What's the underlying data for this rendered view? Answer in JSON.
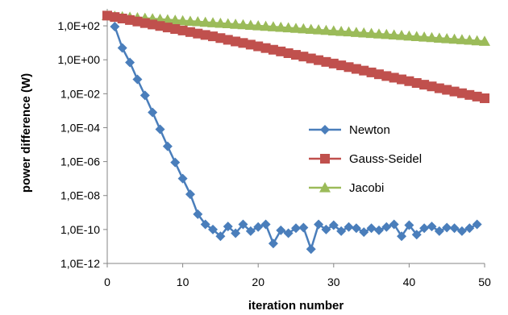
{
  "chart_data": {
    "type": "line",
    "title": "",
    "xlabel": "iteration number",
    "ylabel": "power difference (W)",
    "yscale": "log",
    "xlim": [
      0,
      50
    ],
    "ylim": [
      1e-12,
      1000
    ],
    "x_ticks": [
      0,
      10,
      20,
      30,
      40,
      50
    ],
    "x_tick_labels": [
      "0",
      "10",
      "20",
      "30",
      "40",
      "50"
    ],
    "y_ticks": [
      1e-12,
      1e-10,
      1e-08,
      1e-06,
      0.0001,
      0.01,
      1,
      100
    ],
    "y_tick_labels": [
      "1,0E-12",
      "1,0E-10",
      "1,0E-08",
      "1,0E-06",
      "1,0E-04",
      "1,0E-02",
      "1,0E+00",
      "1,0E+02"
    ],
    "grid": false,
    "legend_position": "right",
    "series": [
      {
        "name": "Newton",
        "color": "#4a7ebb",
        "marker": "diamond",
        "x": [
          1,
          2,
          3,
          4,
          5,
          6,
          7,
          8,
          9,
          10,
          11,
          12,
          13,
          14,
          15,
          16,
          17,
          18,
          19,
          20,
          21,
          22,
          23,
          24,
          25,
          26,
          27,
          28,
          29,
          30,
          31,
          32,
          33,
          34,
          35,
          36,
          37,
          38,
          39,
          40,
          41,
          42,
          43,
          44,
          45,
          46,
          47,
          48,
          49
        ],
        "y": [
          90,
          5,
          0.7,
          0.07,
          0.008,
          0.0008,
          8e-05,
          8e-06,
          9e-07,
          1e-07,
          1.2e-08,
          8e-10,
          2e-10,
          1e-10,
          4e-11,
          1.5e-10,
          6e-11,
          2e-10,
          8e-11,
          1.4e-10,
          2e-10,
          1.5e-11,
          9e-11,
          6e-11,
          1.2e-10,
          1.3e-10,
          7e-12,
          2e-10,
          1e-10,
          1.8e-10,
          8e-11,
          1.4e-10,
          1.2e-10,
          7e-11,
          1.2e-10,
          9e-11,
          1.4e-10,
          2e-10,
          4e-11,
          1.8e-10,
          5e-11,
          1.2e-10,
          1.5e-10,
          8e-11,
          1.3e-10,
          1.2e-10,
          8e-11,
          1.2e-10,
          2e-10
        ]
      },
      {
        "name": "Gauss-Seidel",
        "color": "#c0504d",
        "marker": "square",
        "x": [
          0,
          1,
          2,
          3,
          4,
          5,
          6,
          7,
          8,
          9,
          10,
          11,
          12,
          13,
          14,
          15,
          16,
          17,
          18,
          19,
          20,
          21,
          22,
          23,
          24,
          25,
          26,
          27,
          28,
          29,
          30,
          31,
          32,
          33,
          34,
          35,
          36,
          37,
          38,
          39,
          40,
          41,
          42,
          43,
          44,
          45,
          46,
          47,
          48,
          49,
          50
        ],
        "y": [
          400,
          330,
          270,
          220,
          180,
          145,
          120,
          98,
          80,
          65,
          53,
          43,
          35,
          29,
          24,
          19,
          15,
          12,
          9.8,
          7.8,
          6.2,
          4.9,
          3.9,
          3.1,
          2.45,
          1.95,
          1.55,
          1.2,
          0.95,
          0.75,
          0.6,
          0.47,
          0.37,
          0.29,
          0.23,
          0.18,
          0.14,
          0.11,
          0.088,
          0.07,
          0.055,
          0.043,
          0.034,
          0.027,
          0.021,
          0.017,
          0.0135,
          0.0107,
          0.0085,
          0.0068,
          0.0054
        ]
      },
      {
        "name": "Jacobi",
        "color": "#9bbb59",
        "marker": "triangle",
        "x": [
          0,
          1,
          2,
          3,
          4,
          5,
          6,
          7,
          8,
          9,
          10,
          11,
          12,
          13,
          14,
          15,
          16,
          17,
          18,
          19,
          20,
          21,
          22,
          23,
          24,
          25,
          26,
          27,
          28,
          29,
          30,
          31,
          32,
          33,
          34,
          35,
          36,
          37,
          38,
          39,
          40,
          41,
          42,
          43,
          44,
          45,
          46,
          47,
          48,
          49,
          50
        ],
        "y": [
          400,
          370,
          345,
          320,
          300,
          280,
          262,
          245,
          230,
          215,
          200,
          187,
          175,
          163,
          152,
          142,
          133,
          124,
          116,
          108,
          101,
          94,
          88,
          82,
          76.5,
          71,
          66.5,
          62,
          58,
          54,
          50,
          47,
          44,
          41,
          38,
          35.5,
          33,
          31,
          29,
          27,
          25,
          23.3,
          21.7,
          20.2,
          18.8,
          17.5,
          16.3,
          15.2,
          14.2,
          13.2,
          12.3
        ]
      }
    ]
  }
}
